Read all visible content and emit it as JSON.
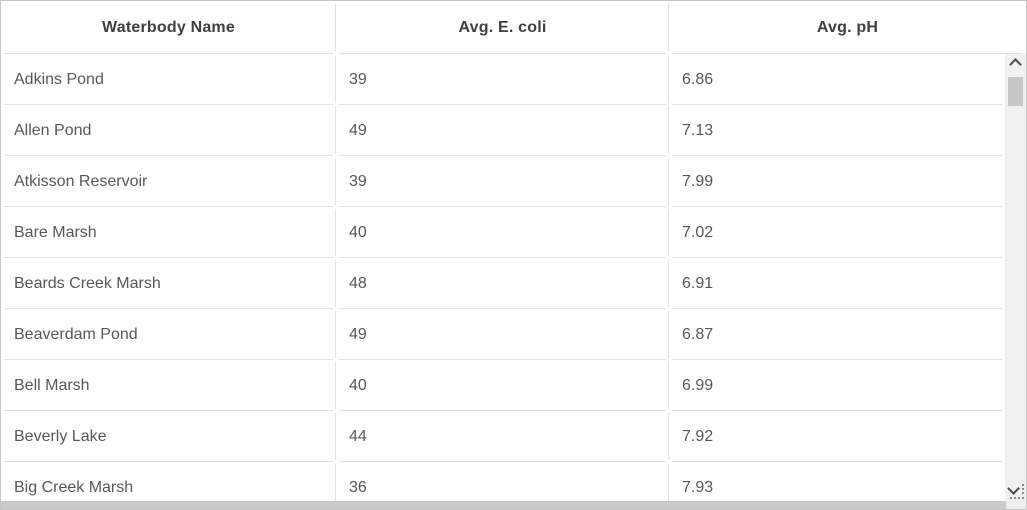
{
  "table": {
    "columns": [
      {
        "key": "name",
        "label": "Waterbody Name"
      },
      {
        "key": "ecoli",
        "label": "Avg. E. coli"
      },
      {
        "key": "ph",
        "label": "Avg. pH"
      }
    ],
    "rows": [
      {
        "name": "Adkins Pond",
        "ecoli": "39",
        "ph": "6.86"
      },
      {
        "name": "Allen Pond",
        "ecoli": "49",
        "ph": "7.13"
      },
      {
        "name": "Atkisson Reservoir",
        "ecoli": "39",
        "ph": "7.99"
      },
      {
        "name": "Bare Marsh",
        "ecoli": "40",
        "ph": "7.02"
      },
      {
        "name": "Beards Creek Marsh",
        "ecoli": "48",
        "ph": "6.91"
      },
      {
        "name": "Beaverdam Pond",
        "ecoli": "49",
        "ph": "6.87"
      },
      {
        "name": "Bell Marsh",
        "ecoli": "40",
        "ph": "6.99"
      },
      {
        "name": "Beverly Lake",
        "ecoli": "44",
        "ph": "7.92"
      },
      {
        "name": "Big Creek Marsh",
        "ecoli": "36",
        "ph": "7.93"
      }
    ]
  },
  "scrollbar": {
    "vertical": {
      "up_icon": "chevron-up-icon",
      "down_icon": "chevron-down-icon",
      "thumb": "scroll-thumb"
    },
    "horizontal": {
      "thumb": "scroll-thumb"
    },
    "corner_icon": "resize-grip-icon"
  },
  "colors": {
    "header_text": "#3c4043",
    "body_text": "#54585a",
    "divider": "#e0e0e0",
    "outer_border": "#c5c5c5",
    "scroll_track": "#f1f1f1",
    "scroll_thumb": "#c7c7c7"
  }
}
